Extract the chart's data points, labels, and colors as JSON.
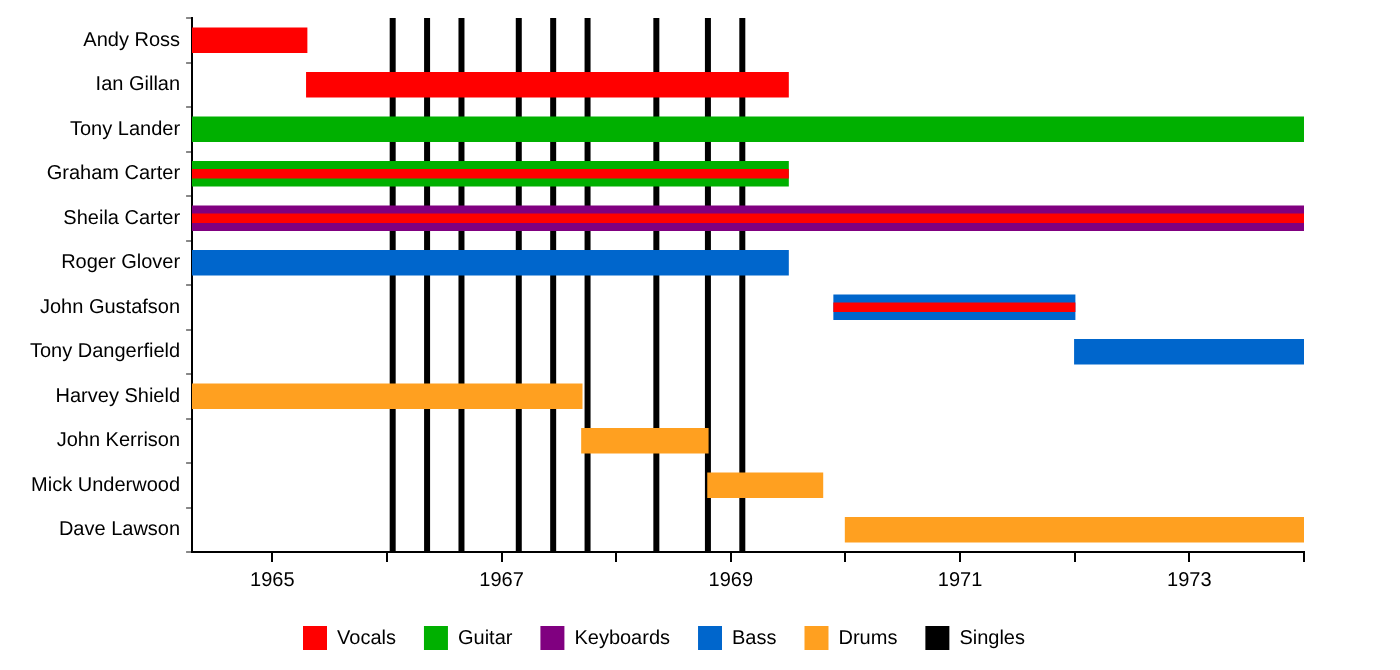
{
  "chart_data": {
    "type": "bar",
    "orientation": "horizontal",
    "legend": "bottom",
    "grid": false,
    "categories": [
      "Andy Ross",
      "Ian Gillan",
      "Tony Lander",
      "Graham Carter",
      "Sheila Carter",
      "Roger Glover",
      "John Gustafson",
      "Tony Dangerfield",
      "Harvey Shield",
      "John Kerrison",
      "Mick Underwood",
      "Dave Lawson"
    ],
    "series": [
      {
        "name": "Guitar",
        "color": "#00b000",
        "base": [
          null,
          null,
          1964.3,
          1964.3,
          null,
          null,
          null,
          null,
          null,
          null,
          null,
          null
        ],
        "values": [
          null,
          null,
          9.7,
          5.2,
          null,
          null,
          null,
          null,
          null,
          null,
          null,
          null
        ]
      },
      {
        "name": "Keyboards",
        "color": "#800080",
        "base": [
          null,
          null,
          null,
          null,
          1964.3,
          null,
          null,
          null,
          null,
          null,
          null,
          null
        ],
        "values": [
          null,
          null,
          null,
          null,
          9.7,
          null,
          null,
          null,
          null,
          null,
          null,
          null
        ]
      },
      {
        "name": "Bass",
        "color": "#0066cc",
        "base": [
          null,
          null,
          null,
          null,
          null,
          1964.3,
          1969.9,
          1972.0,
          null,
          null,
          null,
          null
        ],
        "values": [
          null,
          null,
          null,
          null,
          null,
          5.2,
          2.1,
          2.0,
          null,
          null,
          null,
          null
        ]
      },
      {
        "name": "Drums",
        "color": "#ffa020",
        "base": [
          null,
          null,
          null,
          null,
          null,
          null,
          null,
          null,
          1964.3,
          1967.7,
          1968.8,
          1970.0
        ],
        "values": [
          null,
          null,
          null,
          null,
          null,
          null,
          null,
          null,
          3.4,
          1.1,
          1.0,
          4.0
        ]
      },
      {
        "name": "Vocals",
        "color": "#ff0000",
        "base": [
          1964.3,
          1965.3,
          null,
          1964.3,
          1964.3,
          null,
          1969.9,
          null,
          null,
          null,
          null,
          null
        ],
        "values": [
          1.0,
          4.2,
          null,
          5.2,
          9.7,
          null,
          2.1,
          null,
          null,
          null,
          null,
          null
        ]
      }
    ],
    "xlim": [
      1964.3,
      1974.0
    ],
    "xticks": [
      1965,
      {
        "value": 1966,
        "label": null
      },
      1967,
      {
        "value": 1968,
        "label": null
      },
      1969,
      {
        "value": 1970,
        "label": null
      },
      1971,
      {
        "value": 1972,
        "label": null
      },
      1973,
      {
        "value": 1974,
        "label": null
      }
    ],
    "ref_lines": [
      {
        "axis": "x",
        "value": 1966.05,
        "label": "Singles",
        "color": "#000000"
      },
      {
        "axis": "x",
        "value": 1966.35,
        "color": "#000000"
      },
      {
        "axis": "x",
        "value": 1966.65,
        "color": "#000000"
      },
      {
        "axis": "x",
        "value": 1967.15,
        "color": "#000000"
      },
      {
        "axis": "x",
        "value": 1967.45,
        "color": "#000000"
      },
      {
        "axis": "x",
        "value": 1967.75,
        "color": "#000000"
      },
      {
        "axis": "x",
        "value": 1968.35,
        "color": "#000000"
      },
      {
        "axis": "x",
        "value": 1968.8,
        "color": "#000000"
      },
      {
        "axis": "x",
        "value": 1969.1,
        "color": "#000000"
      }
    ]
  }
}
